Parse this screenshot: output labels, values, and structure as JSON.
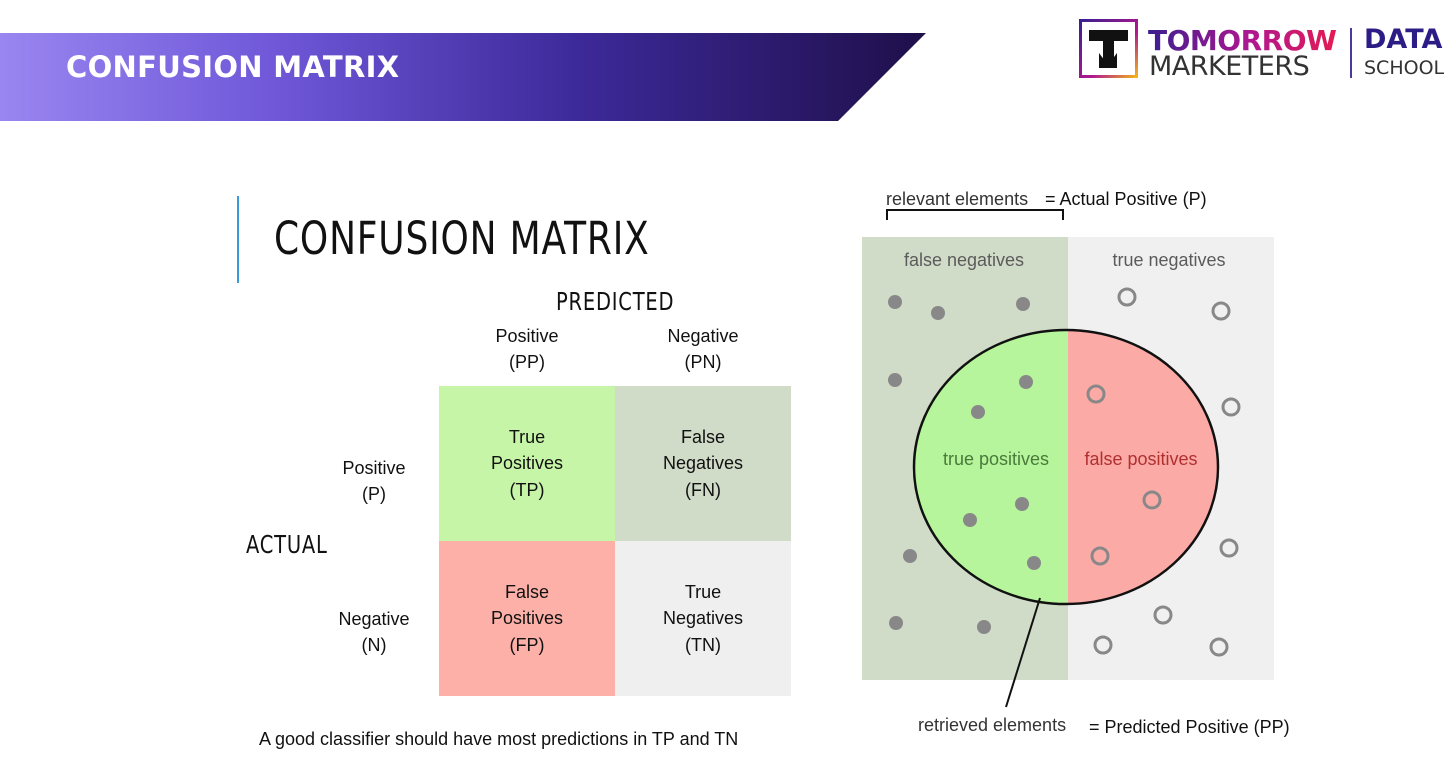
{
  "header": {
    "banner_title": "CONFUSION MATRIX",
    "logo_line1": "TOMORROW",
    "logo_line2": "MARKETERS",
    "logo_data": "DATA",
    "logo_school": "SCHOOL"
  },
  "matrix": {
    "heading": "CONFUSION MATRIX",
    "predicted_label": "PREDICTED",
    "actual_label": "ACTUAL",
    "col_positive": "Positive\n(PP)",
    "col_negative": "Negative\n(PN)",
    "row_positive": "Positive\n(P)",
    "row_negative": "Negative\n(N)",
    "tp": "True\nPositives\n(TP)",
    "fn": "False\nNegatives\n(FN)",
    "fp": "False\nPositives\n(FP)",
    "tn": "True\nNegatives\n(TN)",
    "footer": "A good classifier should have most predictions in TP and TN"
  },
  "venn": {
    "relevant_text": "relevant elements",
    "relevant_eq": "= Actual Positive (P)",
    "false_negatives": "false negatives",
    "true_negatives": "true negatives",
    "true_positives": "true positives",
    "false_positives": "false positives",
    "retrieved_text": "retrieved elements",
    "retrieved_eq": "= Predicted Positive (PP)"
  },
  "colors": {
    "tp": "#c6f5a8",
    "fn": "#d0dbc8",
    "fp": "#fdb0a8",
    "tn": "#efefef",
    "venn_left": "#d0dcc8",
    "venn_right": "#f0f0f0",
    "venn_tp": "#b6f59b",
    "venn_fp": "#fcaaa6",
    "dot": "#888888"
  }
}
